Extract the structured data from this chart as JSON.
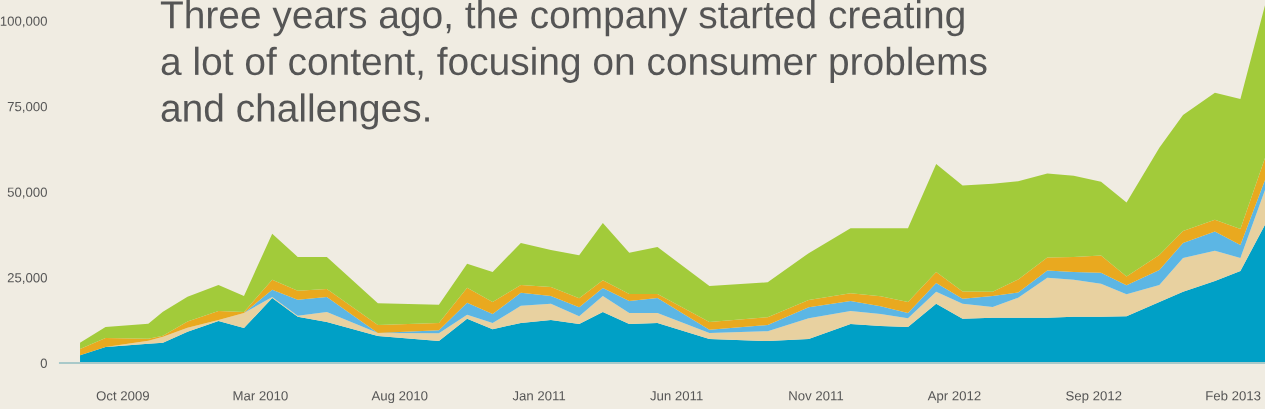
{
  "chart_data": {
    "type": "area",
    "stacked": true,
    "title": "Three years ago, the company started creating\na lot of content, focusing on consumer problems\nand challenges.",
    "x": [
      "2009-08-15",
      "2009-09-12",
      "2009-10-29",
      "2009-11-14",
      "2009-12-11",
      "2010-01-14",
      "2010-02-11",
      "2010-03-14",
      "2010-04-11",
      "2010-05-13",
      "2010-07-08",
      "2010-09-13",
      "2010-10-14",
      "2010-11-11",
      "2010-12-12",
      "2011-01-14",
      "2011-02-14",
      "2011-03-12",
      "2011-04-10",
      "2011-05-11",
      "2011-07-07",
      "2011-09-09",
      "2011-10-24",
      "2011-12-09",
      "2012-01-11",
      "2012-02-10",
      "2012-03-12",
      "2012-04-10",
      "2012-05-13",
      "2012-06-10",
      "2012-07-12",
      "2012-08-10",
      "2012-09-09",
      "2012-10-07",
      "2012-11-12",
      "2012-12-08",
      "2013-01-12",
      "2013-02-09",
      "2013-03-08"
    ],
    "series": [
      {
        "color": "#00a0c6",
        "values": [
          2300,
          4700,
          5600,
          5900,
          9100,
          12300,
          10200,
          19000,
          13500,
          12000,
          7900,
          6400,
          12900,
          9900,
          11700,
          12600,
          11400,
          14900,
          11400,
          11700,
          7000,
          6400,
          7000,
          11400,
          10800,
          10500,
          17300,
          12900,
          13200,
          13200,
          13200,
          13500,
          13500,
          13700,
          17800,
          20800,
          24000,
          26900,
          40400
        ]
      },
      {
        "color": "#e8d1a0",
        "values": [
          0,
          0,
          900,
          1800,
          1200,
          300,
          4400,
          300,
          300,
          2900,
          900,
          2300,
          1200,
          1800,
          5000,
          4700,
          2300,
          4700,
          3200,
          2900,
          1800,
          2900,
          6100,
          3800,
          3500,
          2600,
          3500,
          4400,
          3200,
          5900,
          11700,
          10800,
          9700,
          6400,
          5000,
          9900,
          8800,
          3800,
          10200
        ]
      },
      {
        "color": "#5cb6e4",
        "values": [
          0,
          0,
          0,
          0,
          0,
          0,
          0,
          2100,
          4700,
          4400,
          0,
          900,
          3500,
          2600,
          3800,
          2300,
          2600,
          2300,
          3500,
          4400,
          900,
          1800,
          3200,
          2900,
          2300,
          1500,
          2600,
          1500,
          3200,
          1500,
          2100,
          2300,
          3200,
          2600,
          4400,
          4400,
          5600,
          3800,
          2900
        ]
      },
      {
        "color": "#e9a91f",
        "values": [
          1800,
          2600,
          600,
          300,
          1800,
          2600,
          300,
          2900,
          2600,
          2300,
          2300,
          2100,
          4400,
          3500,
          2300,
          2600,
          2600,
          2300,
          2100,
          1200,
          2300,
          2300,
          2100,
          2300,
          2900,
          3200,
          3200,
          2100,
          1200,
          3800,
          3800,
          4400,
          5000,
          2600,
          4400,
          3500,
          3500,
          4700,
          6400
        ]
      },
      {
        "color": "#a2cb3a",
        "values": [
          1800,
          3200,
          4400,
          7000,
          7300,
          7600,
          4700,
          13500,
          9900,
          9400,
          6400,
          5300,
          7000,
          8800,
          12300,
          10800,
          12600,
          16700,
          12000,
          13700,
          10500,
          10200,
          13700,
          19000,
          19900,
          21600,
          31600,
          31000,
          31600,
          28700,
          24600,
          23700,
          21600,
          21600,
          31300,
          33900,
          37100,
          38000,
          44700
        ]
      }
    ],
    "xlim": [
      "2009-07-24",
      "2013-03-08"
    ],
    "xticks": [
      {
        "value": "2009-10-01",
        "label": "Oct 2009"
      },
      {
        "value": "2010-03-01",
        "label": "Mar 2010"
      },
      {
        "value": "2010-08-01",
        "label": "Aug 2010"
      },
      {
        "value": "2011-01-01",
        "label": "Jan 2011"
      },
      {
        "value": "2011-06-01",
        "label": "Jun 2011"
      },
      {
        "value": "2011-11-01",
        "label": "Nov 2011"
      },
      {
        "value": "2012-04-01",
        "label": "Apr 2012"
      },
      {
        "value": "2012-09-01",
        "label": "Sep 2012"
      },
      {
        "value": "2013-02-01",
        "label": "Feb 2013"
      }
    ],
    "ylim": [
      0,
      106100
    ],
    "yticks": [
      {
        "value": 0,
        "label": "0"
      },
      {
        "value": 25000,
        "label": "25,000"
      },
      {
        "value": 50000,
        "label": "50,000"
      },
      {
        "value": 75000,
        "label": "75,000"
      },
      {
        "value": 100000,
        "label": "100,000"
      }
    ],
    "grid": false,
    "legend": false
  }
}
